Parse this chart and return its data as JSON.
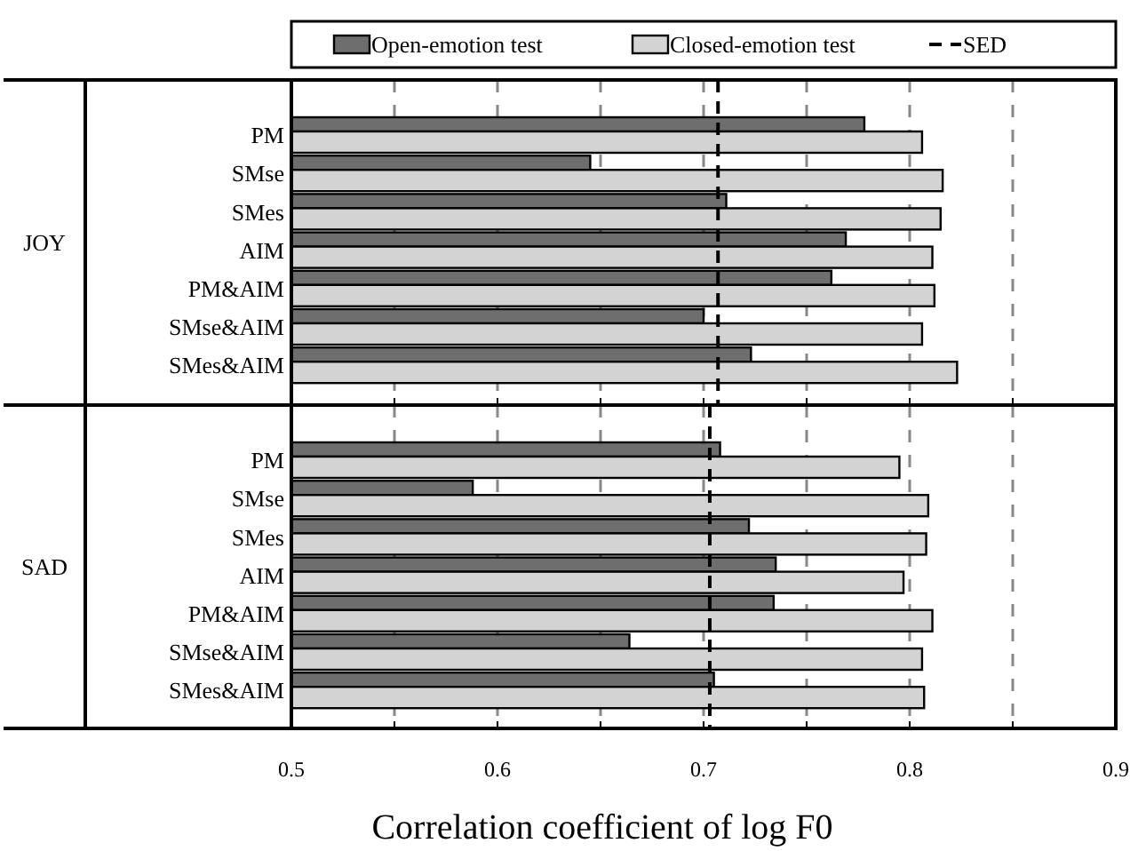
{
  "chart_data": [
    {
      "type": "bar",
      "orientation": "horizontal",
      "ylabel": "JOY",
      "categories": [
        "PM",
        "SMse",
        "SMes",
        "AIM",
        "PM&AIM",
        "SMse&AIM",
        "SMes&AIM"
      ],
      "series": [
        {
          "name": "Open-emotion test",
          "color": "#6e6e6e",
          "values": [
            0.778,
            0.645,
            0.711,
            0.769,
            0.762,
            0.7,
            0.723
          ]
        },
        {
          "name": "Closed-emotion test",
          "color": "#d3d3d3",
          "values": [
            0.806,
            0.816,
            0.815,
            0.811,
            0.812,
            0.806,
            0.823
          ]
        }
      ],
      "xlim": [
        0.5,
        0.9
      ],
      "xticks": [
        0.5,
        {
          "value": 0.55,
          "label": null
        },
        0.6,
        {
          "value": 0.65,
          "label": null
        },
        0.7,
        {
          "value": 0.75,
          "label": null
        },
        0.8,
        {
          "value": 0.85,
          "label": null
        },
        0.9
      ],
      "grid": "x",
      "legend": "top",
      "tick_labels": "y",
      "ref_lines": [
        {
          "axis": "x",
          "value": 0.707,
          "label": "SED",
          "line_style": "dashed",
          "color": "#000000"
        }
      ]
    },
    {
      "type": "bar",
      "orientation": "horizontal",
      "ylabel": "SAD",
      "xlabel": "Correlation coefficient of log F0",
      "categories": [
        "PM",
        "SMse",
        "SMes",
        "AIM",
        "PM&AIM",
        "SMse&AIM",
        "SMes&AIM"
      ],
      "series": [
        {
          "color": "#6e6e6e",
          "values": [
            0.708,
            0.588,
            0.722,
            0.735,
            0.734,
            0.664,
            0.705
          ]
        },
        {
          "color": "#d3d3d3",
          "values": [
            0.795,
            0.809,
            0.808,
            0.797,
            0.811,
            0.806,
            0.807
          ]
        }
      ],
      "xlim": [
        0.5,
        0.9
      ],
      "xticks": [
        0.5,
        {
          "value": 0.55,
          "label": null
        },
        0.6,
        {
          "value": 0.65,
          "label": null
        },
        0.7,
        {
          "value": 0.75,
          "label": null
        },
        0.8,
        {
          "value": 0.85,
          "label": null
        },
        0.9
      ],
      "grid": "x",
      "ref_lines": [
        {
          "axis": "x",
          "value": 0.703,
          "line_style": "dashed",
          "color": "#000000"
        }
      ]
    }
  ]
}
